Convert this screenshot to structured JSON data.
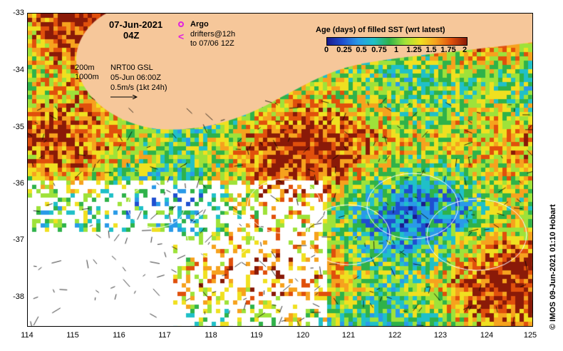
{
  "title": {
    "date": "07-Jun-2021",
    "time": "04Z"
  },
  "legend": {
    "argo": "Argo",
    "drifters_line1": "drifters@12h",
    "drifters_line2": "to 07/06 12Z",
    "title": "Age (days) of filled SST (wrt latest)",
    "ticks": [
      "0",
      "0.25",
      "0.5",
      "0.75",
      "1",
      "1.25",
      "1.5",
      "1.75",
      "2"
    ]
  },
  "annotations": {
    "isobath_200": "200m",
    "isobath_1000": "1000m",
    "product": "NRT00 GSL",
    "product_time": "05-Jun 06:00Z",
    "speed_scale": "0.5m/s (1kt 24h)"
  },
  "axes": {
    "x_ticks": [
      "114",
      "115",
      "116",
      "117",
      "118",
      "119",
      "120",
      "121",
      "122",
      "123",
      "124",
      "125"
    ],
    "y_ticks": [
      "-33",
      "-34",
      "-35",
      "-36",
      "-37",
      "-38"
    ]
  },
  "credit": "© IMOS 09-Jun-2021 01:10 Hobart",
  "colors": {
    "land": "#f6c79a",
    "no_data": "#ffffff",
    "argo": "#e020e0",
    "drifter": "#e020e0"
  }
}
